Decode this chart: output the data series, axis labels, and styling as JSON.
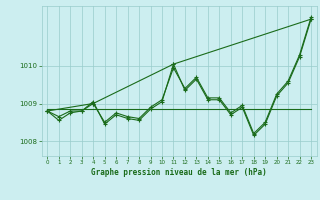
{
  "title": "Graphe pression niveau de la mer (hPa)",
  "background_color": "#cceef0",
  "line_color": "#1a6b1a",
  "grid_color": "#99cccc",
  "xlim": [
    -0.5,
    23.5
  ],
  "ylim": [
    1007.6,
    1011.6
  ],
  "yticks": [
    1008,
    1009,
    1010
  ],
  "xticks": [
    0,
    1,
    2,
    3,
    4,
    5,
    6,
    7,
    8,
    9,
    10,
    11,
    12,
    13,
    14,
    15,
    16,
    17,
    18,
    19,
    20,
    21,
    22,
    23
  ],
  "series1_x": [
    0,
    1,
    2,
    3,
    4,
    5,
    6,
    7,
    8,
    9,
    10,
    11,
    12,
    13,
    14,
    15,
    16,
    17,
    18,
    19,
    20,
    21,
    22,
    23
  ],
  "series1_y": [
    1008.8,
    1008.55,
    1008.75,
    1008.8,
    1009.05,
    1008.45,
    1008.7,
    1008.6,
    1008.55,
    1008.85,
    1009.05,
    1010.05,
    1009.35,
    1009.65,
    1009.1,
    1009.1,
    1008.7,
    1008.9,
    1008.15,
    1008.45,
    1009.2,
    1009.55,
    1010.25,
    1011.25
  ],
  "series2_x": [
    0,
    1,
    2,
    3,
    4,
    5,
    6,
    7,
    8,
    9,
    10,
    11,
    12,
    13,
    14,
    15,
    16,
    17,
    18,
    19,
    20,
    21,
    22,
    23
  ],
  "series2_y": [
    1008.8,
    1008.65,
    1008.8,
    1008.8,
    1009.0,
    1008.5,
    1008.75,
    1008.65,
    1008.6,
    1008.9,
    1009.1,
    1009.95,
    1009.4,
    1009.7,
    1009.15,
    1009.15,
    1008.75,
    1008.95,
    1008.2,
    1008.5,
    1009.25,
    1009.6,
    1010.3,
    1011.3
  ],
  "series3_x": [
    0,
    4,
    11,
    23
  ],
  "series3_y": [
    1008.8,
    1009.0,
    1010.05,
    1011.25
  ],
  "series4_x": [
    0,
    23
  ],
  "series4_y": [
    1008.85,
    1008.85
  ]
}
